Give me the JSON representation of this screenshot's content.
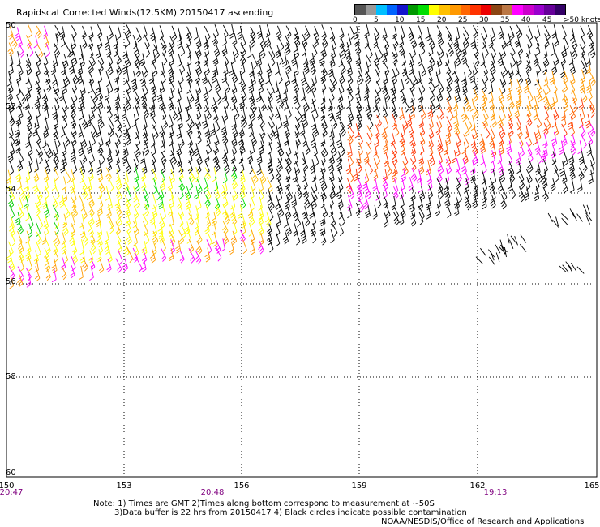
{
  "title": "Rapidscat Corrected Winds(12.5KM) 20150417 ascending",
  "legend": {
    "ticks": [
      "0",
      "5",
      "10",
      "15",
      "20",
      "25",
      "30",
      "35",
      "40",
      "45",
      ">50 knots"
    ],
    "colors": [
      "#555555",
      "#999999",
      "#00bfff",
      "#0064ff",
      "#1414cc",
      "#009900",
      "#00dd00",
      "#ffff00",
      "#ffc000",
      "#ff9900",
      "#ff6600",
      "#ff3300",
      "#ee0000",
      "#8b4513",
      "#bb7744",
      "#ff00ff",
      "#cc00cc",
      "#9900cc",
      "#660099",
      "#330066"
    ]
  },
  "axes": {
    "x_ticks": [
      "150",
      "153",
      "156",
      "159",
      "162",
      "165"
    ],
    "y_ticks": [
      "50",
      "52",
      "54",
      "56",
      "58",
      "60"
    ]
  },
  "times": [
    "20:47",
    "20:48",
    "19:13"
  ],
  "notes": {
    "line1": "Note: 1) Times are GMT 2)Times along bottom correspond to measurement at ~50S",
    "line2": "3)Data buffer is 22 hrs from 20150417 4) Black circles indicate possible contamination",
    "line3": "NOAA/NESDIS/Office of Research and Applications"
  }
}
